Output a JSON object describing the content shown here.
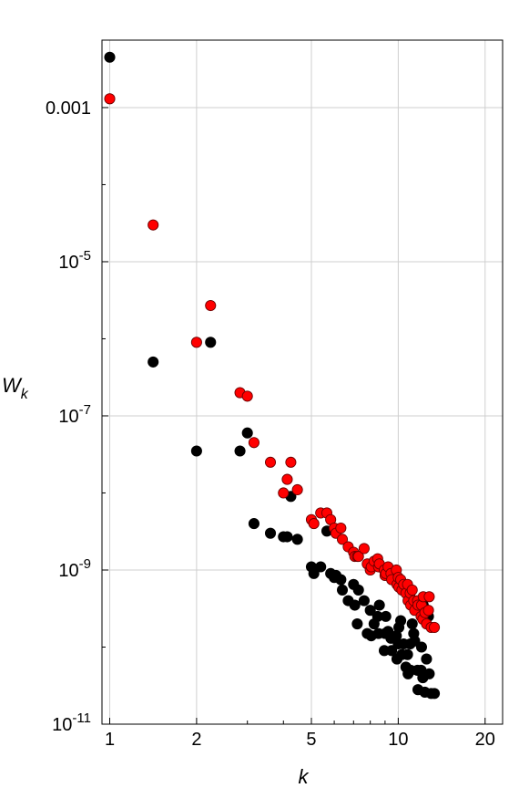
{
  "chart_data": {
    "type": "scatter",
    "title": "",
    "xlabel": "k",
    "ylabel": "W",
    "ylabel_sub": "k",
    "x_scale": "log",
    "y_scale": "log",
    "xlim": [
      0.94,
      23
    ],
    "ylim": [
      1e-11,
      0.0075
    ],
    "grid": true,
    "legend": "none",
    "x_ticks": [
      {
        "value": 1,
        "label": "1"
      },
      {
        "value": 2,
        "label": "2"
      },
      {
        "value": 5,
        "label": "5"
      },
      {
        "value": 10,
        "label": "10"
      },
      {
        "value": 20,
        "label": "20"
      }
    ],
    "y_ticks": [
      {
        "value": 0.001,
        "label": "0.001",
        "exp": ""
      },
      {
        "value": 1e-05,
        "label": "10",
        "exp": "-5"
      },
      {
        "value": 1e-07,
        "label": "10",
        "exp": "-7"
      },
      {
        "value": 1e-09,
        "label": "10",
        "exp": "-9"
      },
      {
        "value": 1e-11,
        "label": "10",
        "exp": "-11"
      }
    ],
    "series": [
      {
        "color": "#000000",
        "stroke": "#000000",
        "points": [
          [
            1,
            0.0045
          ],
          [
            1.414,
            5e-07
          ],
          [
            2,
            3.5e-08
          ],
          [
            2.236,
            9e-07
          ],
          [
            2.828,
            3.5e-08
          ],
          [
            3,
            6e-08
          ],
          [
            3.162,
            4e-09
          ],
          [
            3.606,
            3e-09
          ],
          [
            4,
            2.7e-09
          ],
          [
            4.123,
            2.7e-09
          ],
          [
            4.243,
            9e-09
          ],
          [
            4.472,
            2.5e-09
          ],
          [
            5,
            1.1e-09
          ],
          [
            5.099,
            9e-10
          ],
          [
            5.385,
            1.1e-09
          ],
          [
            5.657,
            3.2e-09
          ],
          [
            5.831,
            9e-10
          ],
          [
            6,
            8e-10
          ],
          [
            6.083,
            8.5e-10
          ],
          [
            6.325,
            7.5e-10
          ],
          [
            6.403,
            5.5e-10
          ],
          [
            6.708,
            4e-10
          ],
          [
            7,
            6.5e-10
          ],
          [
            7.071,
            3.5e-10
          ],
          [
            7.211,
            2e-10
          ],
          [
            7.28,
            5.5e-10
          ],
          [
            7.616,
            4e-10
          ],
          [
            7.81,
            1.5e-10
          ],
          [
            8,
            3e-10
          ],
          [
            8.062,
            1.4e-10
          ],
          [
            8.246,
            2e-10
          ],
          [
            8.485,
            2.5e-10
          ],
          [
            8.544,
            1.5e-10
          ],
          [
            8.602,
            3.5e-10
          ],
          [
            8.944,
            9e-11
          ],
          [
            9,
            1.5e-10
          ],
          [
            9.055,
            2.5e-10
          ],
          [
            9.22,
            1.6e-10
          ],
          [
            9.434,
            1.3e-10
          ],
          [
            9.487,
            9e-11
          ],
          [
            9.849,
            1.4e-10
          ],
          [
            9.899,
            7e-11
          ],
          [
            10,
            1.1e-10
          ],
          [
            10.05,
            1.8e-10
          ],
          [
            10.198,
            2.2e-10
          ],
          [
            10.296,
            8e-11
          ],
          [
            10.44,
            1.1e-10
          ],
          [
            10.63,
            5.5e-11
          ],
          [
            10.77,
            8e-11
          ],
          [
            10.817,
            4.5e-11
          ],
          [
            11,
            1.1e-10
          ],
          [
            11.045,
            5e-11
          ],
          [
            11.18,
            2e-10
          ],
          [
            11.314,
            1.5e-10
          ],
          [
            11.402,
            1.2e-10
          ],
          [
            11.662,
            5e-11
          ],
          [
            11.705,
            2.8e-11
          ],
          [
            12,
            5e-11
          ],
          [
            12.042,
            1e-10
          ],
          [
            12.166,
            4e-11
          ],
          [
            12.207,
            3.5e-10
          ],
          [
            12.369,
            2.6e-11
          ],
          [
            12.53,
            7e-11
          ],
          [
            12.728,
            2.5e-10
          ],
          [
            12.806,
            4.5e-11
          ],
          [
            13,
            2.5e-11
          ],
          [
            13.342,
            2.5e-11
          ]
        ]
      },
      {
        "color": "#ff0000",
        "stroke": "#6e0000",
        "points": [
          [
            1,
            0.0013
          ],
          [
            1.414,
            3e-05
          ],
          [
            2,
            9e-07
          ],
          [
            2.236,
            2.7e-06
          ],
          [
            2.828,
            2e-07
          ],
          [
            3,
            1.8e-07
          ],
          [
            3.162,
            4.5e-08
          ],
          [
            3.606,
            2.5e-08
          ],
          [
            4,
            1e-08
          ],
          [
            4.123,
            1.5e-08
          ],
          [
            4.243,
            2.5e-08
          ],
          [
            4.472,
            1.1e-08
          ],
          [
            5,
            4.5e-09
          ],
          [
            5.099,
            4e-09
          ],
          [
            5.385,
            5.5e-09
          ],
          [
            5.657,
            5.5e-09
          ],
          [
            5.831,
            4.5e-09
          ],
          [
            6,
            3.5e-09
          ],
          [
            6.083,
            3e-09
          ],
          [
            6.325,
            3.5e-09
          ],
          [
            6.403,
            2.5e-09
          ],
          [
            6.708,
            2e-09
          ],
          [
            7,
            1.7e-09
          ],
          [
            7.071,
            1.5e-09
          ],
          [
            7.211,
            1.5e-09
          ],
          [
            7.28,
            1.5e-09
          ],
          [
            7.616,
            1.9e-09
          ],
          [
            7.81,
            1.2e-09
          ],
          [
            8,
            1e-09
          ],
          [
            8.062,
            1.1e-09
          ],
          [
            8.246,
            1.3e-09
          ],
          [
            8.485,
            1.4e-09
          ],
          [
            8.544,
            1.1e-09
          ],
          [
            8.602,
            1.2e-09
          ],
          [
            8.944,
            1e-09
          ],
          [
            9,
            8.5e-10
          ],
          [
            9.055,
            9e-10
          ],
          [
            9.22,
            1.1e-09
          ],
          [
            9.434,
            9e-10
          ],
          [
            9.487,
            7.5e-10
          ],
          [
            9.849,
            1e-09
          ],
          [
            9.899,
            6.5e-10
          ],
          [
            10,
            8e-10
          ],
          [
            10.05,
            6e-10
          ],
          [
            10.198,
            7.5e-10
          ],
          [
            10.296,
            5.5e-10
          ],
          [
            10.44,
            6.5e-10
          ],
          [
            10.63,
            5e-10
          ],
          [
            10.77,
            6.5e-10
          ],
          [
            10.817,
            4e-10
          ],
          [
            11,
            5e-10
          ],
          [
            11.045,
            3.5e-10
          ],
          [
            11.18,
            5.5e-10
          ],
          [
            11.314,
            4e-10
          ],
          [
            11.402,
            3e-10
          ],
          [
            11.662,
            4e-10
          ],
          [
            11.705,
            3.5e-10
          ],
          [
            12,
            2.5e-10
          ],
          [
            12.042,
            3.5e-10
          ],
          [
            12.166,
            2.3e-10
          ],
          [
            12.207,
            4.5e-10
          ],
          [
            12.369,
            2.8e-10
          ],
          [
            12.53,
            2e-10
          ],
          [
            12.728,
            3e-10
          ],
          [
            12.806,
            4.5e-10
          ],
          [
            13,
            1.8e-10
          ],
          [
            13.342,
            1.8e-10
          ]
        ]
      }
    ]
  }
}
